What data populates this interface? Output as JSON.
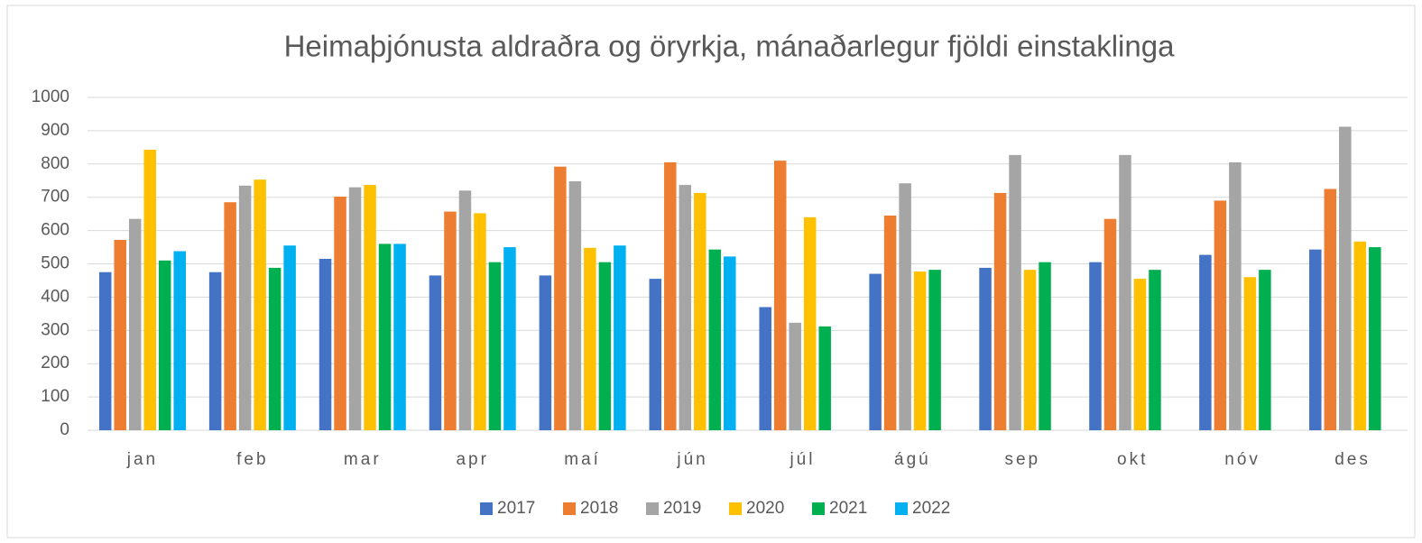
{
  "chart_data": {
    "type": "bar",
    "title": "Heimaþjónusta aldraðra og öryrkja, mánaðarlegur fjöldi einstaklinga",
    "categories": [
      "jan",
      "feb",
      "mar",
      "apr",
      "maí",
      "jún",
      "júl",
      "ágú",
      "sep",
      "okt",
      "nóv",
      "des"
    ],
    "series": [
      {
        "name": "2017",
        "color": "#4472c4",
        "values": [
          475,
          475,
          515,
          465,
          465,
          455,
          370,
          470,
          488,
          505,
          527,
          543
        ]
      },
      {
        "name": "2018",
        "color": "#ed7d31",
        "values": [
          572,
          685,
          702,
          657,
          792,
          805,
          810,
          645,
          713,
          635,
          690,
          725
        ]
      },
      {
        "name": "2019",
        "color": "#a5a5a5",
        "values": [
          635,
          735,
          730,
          720,
          748,
          737,
          323,
          742,
          827,
          827,
          805,
          912
        ]
      },
      {
        "name": "2020",
        "color": "#ffc000",
        "values": [
          843,
          753,
          737,
          652,
          548,
          713,
          640,
          477,
          482,
          455,
          460,
          567
        ]
      },
      {
        "name": "2021",
        "color": "#00b050",
        "values": [
          510,
          488,
          560,
          505,
          505,
          543,
          312,
          482,
          505,
          482,
          482,
          550
        ]
      },
      {
        "name": "2022",
        "color": "#00b0f0",
        "values": [
          538,
          555,
          560,
          550,
          555,
          522,
          null,
          null,
          null,
          null,
          null,
          null
        ]
      }
    ],
    "ylim": [
      0,
      1000
    ],
    "yticks": [
      0,
      100,
      200,
      300,
      400,
      500,
      600,
      700,
      800,
      900,
      1000
    ],
    "grid": true,
    "legend": "bottom"
  }
}
